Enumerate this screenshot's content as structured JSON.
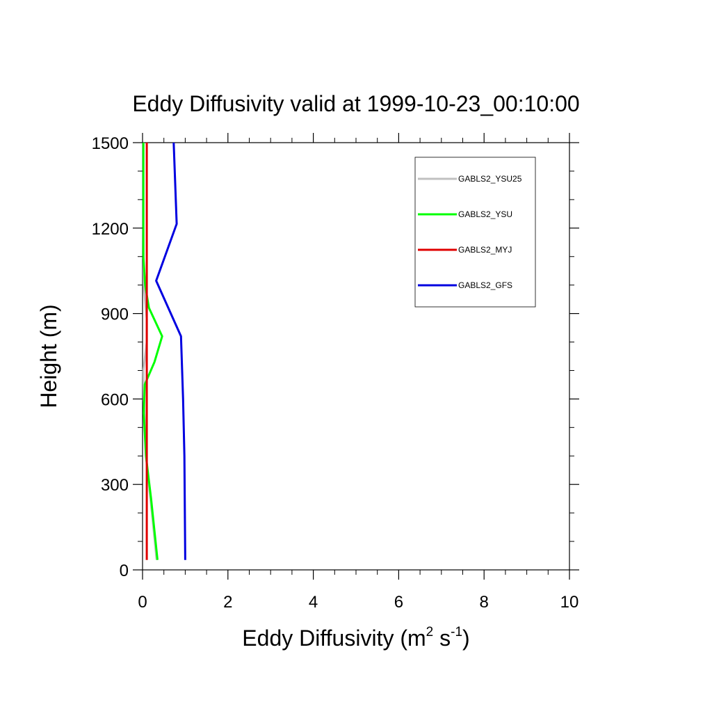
{
  "chart_data": {
    "type": "line",
    "title": "Eddy Diffusivity valid at 1999-10-23_00:10:00",
    "xlabel": "Eddy Diffusivity (m",
    "xlabel_sup1": "2",
    "xlabel_mid": " s",
    "xlabel_sup2": "-1",
    "xlabel_end": ")",
    "ylabel": "Height (m)",
    "xlim": [
      0,
      10
    ],
    "ylim": [
      0,
      1500
    ],
    "x_ticks": [
      0,
      2,
      4,
      6,
      8,
      10
    ],
    "y_ticks": [
      0,
      300,
      600,
      900,
      1200,
      1500
    ],
    "grid": false,
    "legend_placement": "top-right",
    "series": [
      {
        "name": "GABLS2_YSU25",
        "color": "#c0c0c0",
        "points": [
          [
            0.33,
            35
          ],
          [
            0.22,
            200
          ],
          [
            0.08,
            400
          ],
          [
            0.03,
            600
          ],
          [
            0.02,
            700
          ],
          [
            0.1,
            800
          ],
          [
            0.1,
            880
          ],
          [
            0.03,
            1000
          ],
          [
            0.02,
            1200
          ],
          [
            0.02,
            1500
          ]
        ]
      },
      {
        "name": "GABLS2_YSU",
        "color": "#00ff00",
        "points": [
          [
            0.35,
            35
          ],
          [
            0.2,
            250
          ],
          [
            0.08,
            400
          ],
          [
            0.03,
            550
          ],
          [
            0.05,
            650
          ],
          [
            0.28,
            730
          ],
          [
            0.46,
            820
          ],
          [
            0.15,
            920
          ],
          [
            0.06,
            1000
          ],
          [
            0.02,
            1100
          ],
          [
            0.02,
            1500
          ]
        ]
      },
      {
        "name": "GABLS2_MYJ",
        "color": "#e00000",
        "points": [
          [
            0.1,
            35
          ],
          [
            0.1,
            400
          ],
          [
            0.1,
            700
          ],
          [
            0.1,
            1000
          ],
          [
            0.1,
            1500
          ]
        ]
      },
      {
        "name": "GABLS2_GFS",
        "color": "#0000e0",
        "points": [
          [
            1.0,
            35
          ],
          [
            0.98,
            400
          ],
          [
            0.95,
            600
          ],
          [
            0.9,
            820
          ],
          [
            0.32,
            1015
          ],
          [
            0.8,
            1215
          ],
          [
            0.73,
            1500
          ]
        ]
      }
    ]
  }
}
